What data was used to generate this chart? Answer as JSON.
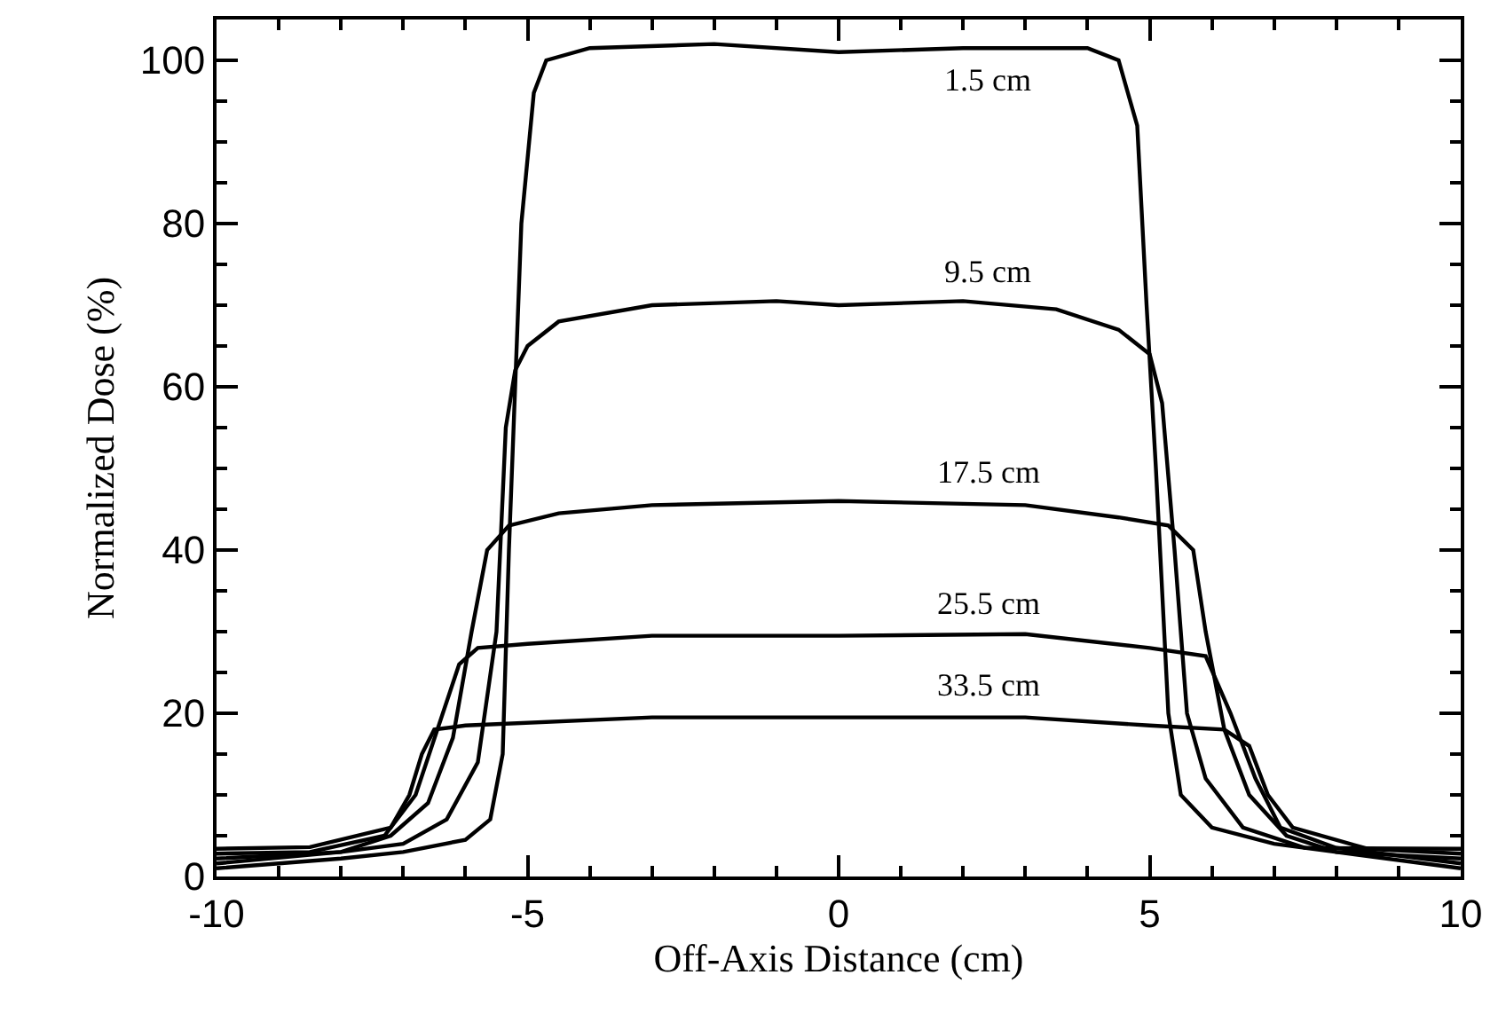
{
  "chart_data": {
    "type": "line",
    "xlabel": "Off-Axis Distance (cm)",
    "ylabel": "Normalized Dose (%)",
    "xlim": [
      -10,
      10
    ],
    "xticks": [
      -10,
      -5,
      0,
      5,
      10
    ],
    "ylim": [
      0,
      105
    ],
    "yticks": [
      0,
      20,
      40,
      60,
      80,
      100
    ],
    "marker": "none",
    "line_style": "solid",
    "series": [
      {
        "name": "1.5 cm",
        "color": "#000000",
        "x": [
          -10,
          -8,
          -7,
          -6,
          -5.6,
          -5.4,
          -5.3,
          -5.1,
          -4.9,
          -4.7,
          -4,
          -2,
          0,
          2,
          4,
          4.5,
          4.8,
          4.95,
          5.1,
          5.3,
          5.5,
          6,
          7,
          8,
          10
        ],
        "values": [
          1,
          2.2,
          3,
          4.5,
          7,
          15,
          40,
          80,
          96,
          100,
          101.5,
          102,
          101,
          101.5,
          101.5,
          100,
          92,
          70,
          50,
          20,
          10,
          6,
          4,
          3,
          2.2
        ]
      },
      {
        "name": "9.5 cm",
        "color": "#000000",
        "x": [
          -10,
          -8,
          -7,
          -6.3,
          -5.8,
          -5.5,
          -5.35,
          -5.2,
          -5,
          -4.5,
          -3,
          -1,
          0,
          2,
          3.5,
          4.5,
          5,
          5.2,
          5.4,
          5.6,
          5.9,
          6.5,
          7.5,
          10
        ],
        "values": [
          1.6,
          3,
          4,
          7,
          14,
          30,
          55,
          62,
          65,
          68,
          70,
          70.5,
          70,
          70.5,
          69.5,
          67,
          64,
          58,
          40,
          20,
          12,
          6,
          3.5,
          3.4
        ]
      },
      {
        "name": "17.5 cm",
        "color": "#000000",
        "x": [
          -10,
          -8,
          -7.2,
          -6.6,
          -6.2,
          -5.9,
          -5.65,
          -5.3,
          -4.5,
          -3,
          0,
          3,
          4.5,
          5.3,
          5.7,
          5.9,
          6.2,
          6.6,
          7.2,
          8,
          10
        ],
        "values": [
          2.2,
          3,
          5,
          9,
          17,
          30,
          40,
          43,
          44.5,
          45.5,
          46,
          45.5,
          44,
          43,
          40,
          30,
          18,
          10,
          5,
          3,
          1
        ]
      },
      {
        "name": "25.5 cm",
        "color": "#000000",
        "x": [
          -10,
          -8.5,
          -7.3,
          -6.8,
          -6.45,
          -6.1,
          -5.8,
          -5,
          -3,
          0,
          3,
          5,
          5.9,
          6.3,
          6.7,
          7.1,
          8,
          10
        ],
        "values": [
          2.8,
          3,
          5,
          10,
          18,
          26,
          28,
          28.5,
          29.5,
          29.5,
          29.7,
          28,
          27,
          20,
          12,
          6,
          3.5,
          1.6
        ]
      },
      {
        "name": "33.5 cm",
        "color": "#000000",
        "x": [
          -10,
          -8.5,
          -7.2,
          -6.9,
          -6.7,
          -6.5,
          -6,
          -3,
          0,
          3,
          5,
          6.2,
          6.6,
          6.9,
          7.3,
          8.5,
          10
        ],
        "values": [
          3.4,
          3.6,
          6,
          10,
          15,
          18,
          18.5,
          19.5,
          19.5,
          19.5,
          18.5,
          18,
          16,
          10,
          6,
          3.4,
          2.8
        ]
      }
    ]
  }
}
